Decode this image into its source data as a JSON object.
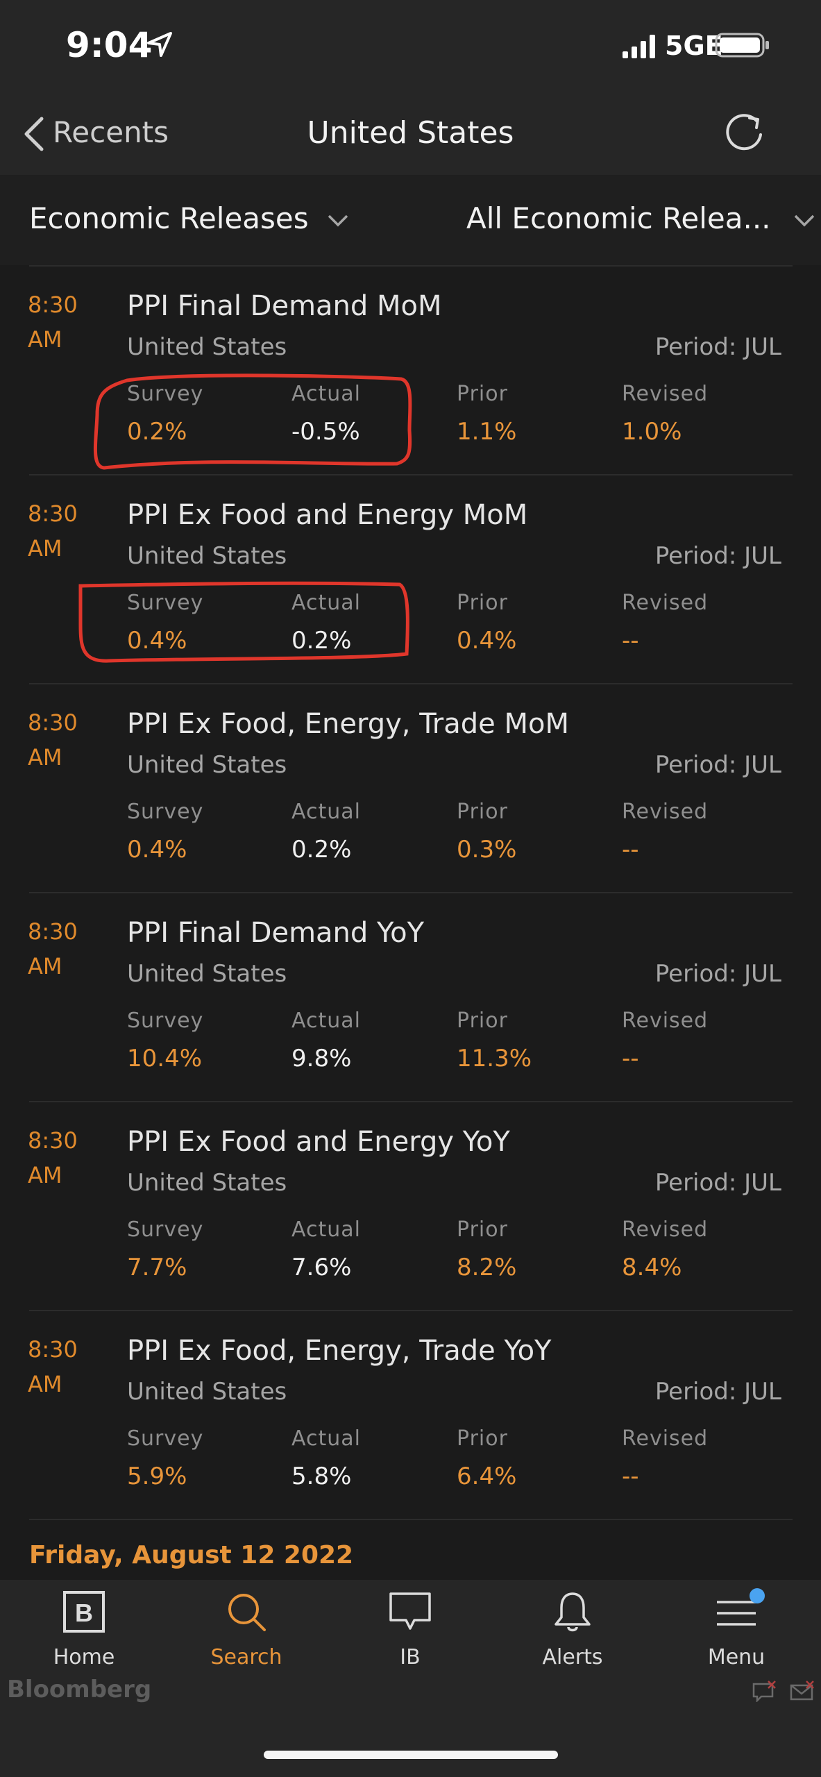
{
  "status_bar": {
    "time": "9:04",
    "network": "5GE"
  },
  "nav": {
    "back_label": "Recents",
    "title": "United States"
  },
  "filters": {
    "left": "Economic Releases",
    "right": "All Economic Relea..."
  },
  "columns": {
    "survey": "Survey",
    "actual": "Actual",
    "prior": "Prior",
    "revised": "Revised"
  },
  "releases": [
    {
      "time_hm": "8:30",
      "time_ampm": "AM",
      "title": "PPI Final Demand MoM",
      "country": "United States",
      "period": "Period: JUL",
      "survey": "0.2%",
      "actual": "-0.5%",
      "prior": "1.1%",
      "revised": "1.0%"
    },
    {
      "time_hm": "8:30",
      "time_ampm": "AM",
      "title": "PPI Ex Food and Energy MoM",
      "country": "United States",
      "period": "Period: JUL",
      "survey": "0.4%",
      "actual": "0.2%",
      "prior": "0.4%",
      "revised": "--"
    },
    {
      "time_hm": "8:30",
      "time_ampm": "AM",
      "title": "PPI Ex Food, Energy, Trade MoM",
      "country": "United States",
      "period": "Period: JUL",
      "survey": "0.4%",
      "actual": "0.2%",
      "prior": "0.3%",
      "revised": "--"
    },
    {
      "time_hm": "8:30",
      "time_ampm": "AM",
      "title": "PPI Final Demand YoY",
      "country": "United States",
      "period": "Period: JUL",
      "survey": "10.4%",
      "actual": "9.8%",
      "prior": "11.3%",
      "revised": "--"
    },
    {
      "time_hm": "8:30",
      "time_ampm": "AM",
      "title": "PPI Ex Food and Energy YoY",
      "country": "United States",
      "period": "Period: JUL",
      "survey": "7.7%",
      "actual": "7.6%",
      "prior": "8.2%",
      "revised": "8.4%"
    },
    {
      "time_hm": "8:30",
      "time_ampm": "AM",
      "title": "PPI Ex Food, Energy, Trade YoY",
      "country": "United States",
      "period": "Period: JUL",
      "survey": "5.9%",
      "actual": "5.8%",
      "prior": "6.4%",
      "revised": "--"
    }
  ],
  "next_date_header": "Friday, August 12 2022",
  "tabs": [
    {
      "label": "Home",
      "icon": "bloomberg-b-icon"
    },
    {
      "label": "Search",
      "icon": "search-icon",
      "active": true
    },
    {
      "label": "IB",
      "icon": "chat-bubble-icon"
    },
    {
      "label": "Alerts",
      "icon": "bell-icon"
    },
    {
      "label": "Menu",
      "icon": "menu-icon",
      "badge": true
    }
  ],
  "brand": "Bloomberg",
  "colors": {
    "accent": "#e8953a",
    "annotation": "#e0362b",
    "badge": "#4aa3f0"
  }
}
